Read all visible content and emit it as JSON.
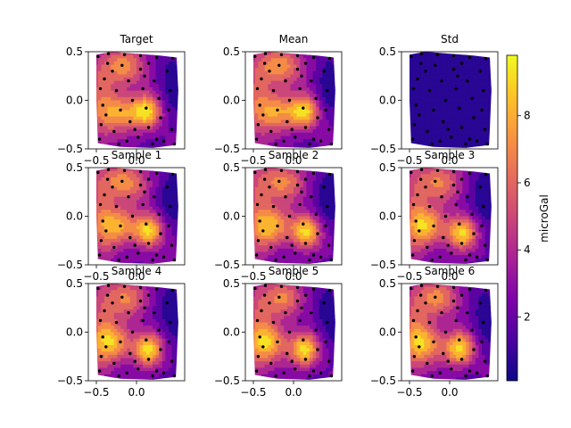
{
  "chart_data": {
    "type": "contour",
    "colormap": "plasma",
    "value_range": [
      0.1,
      9.8
    ],
    "axes": {
      "xlim": [
        -0.6,
        0.6
      ],
      "ylim": [
        -0.5,
        0.5
      ],
      "xticks": [
        -0.5,
        0.0
      ],
      "xtick_labels": [
        "−0.5",
        "0.0"
      ],
      "yticks": [
        0.5,
        0.0,
        -0.5
      ],
      "ytick_labels": [
        "0.5",
        "0.0",
        "−0.5"
      ]
    },
    "panels": [
      {
        "title": "Target",
        "kind": "field",
        "variant": 0
      },
      {
        "title": "Mean",
        "kind": "field",
        "variant": 1
      },
      {
        "title": "Std",
        "kind": "std",
        "variant": 2
      },
      {
        "title": "Sample 1",
        "kind": "field",
        "variant": 3
      },
      {
        "title": "Sample 2",
        "kind": "field",
        "variant": 4
      },
      {
        "title": "Sample 3",
        "kind": "field",
        "variant": 5
      },
      {
        "title": "Sample 4",
        "kind": "field",
        "variant": 6
      },
      {
        "title": "Sample 5",
        "kind": "field",
        "variant": 7
      },
      {
        "title": "Sample 6",
        "kind": "field",
        "variant": 8
      }
    ],
    "colorbar": {
      "label": "microGal",
      "ticks": [
        2,
        4,
        6,
        8
      ],
      "tick_labels": [
        "2",
        "4",
        "6",
        "8"
      ]
    },
    "observation_points": [
      [
        -0.48,
        0.45
      ],
      [
        -0.35,
        0.48
      ],
      [
        -0.15,
        0.47
      ],
      [
        0.05,
        0.46
      ],
      [
        0.25,
        0.44
      ],
      [
        0.45,
        0.43
      ],
      [
        -0.45,
        0.12
      ],
      [
        -0.42,
        -0.05
      ],
      [
        -0.44,
        -0.25
      ],
      [
        -0.46,
        -0.4
      ],
      [
        -0.3,
        0.3
      ],
      [
        -0.25,
        0.1
      ],
      [
        -0.2,
        -0.1
      ],
      [
        -0.28,
        -0.32
      ],
      [
        -0.1,
        0.2
      ],
      [
        -0.05,
        0.0
      ],
      [
        -0.08,
        -0.22
      ],
      [
        -0.12,
        -0.42
      ],
      [
        0.05,
        0.32
      ],
      [
        0.08,
        0.12
      ],
      [
        0.12,
        -0.08
      ],
      [
        0.15,
        -0.28
      ],
      [
        0.02,
        -0.38
      ],
      [
        0.22,
        0.2
      ],
      [
        0.28,
        0.02
      ],
      [
        0.3,
        -0.18
      ],
      [
        0.25,
        -0.4
      ],
      [
        0.38,
        0.3
      ],
      [
        0.42,
        0.1
      ],
      [
        0.4,
        -0.1
      ],
      [
        0.44,
        -0.3
      ],
      [
        0.47,
        -0.45
      ],
      [
        -0.36,
        0.38
      ],
      [
        -0.18,
        0.36
      ],
      [
        0.15,
        0.38
      ],
      [
        -0.38,
        -0.15
      ],
      [
        -0.02,
        -0.3
      ],
      [
        0.2,
        -0.45
      ],
      [
        0.34,
        -0.42
      ],
      [
        -0.4,
        0.22
      ],
      [
        0.1,
        0.25
      ],
      [
        -0.22,
        -0.45
      ]
    ]
  }
}
